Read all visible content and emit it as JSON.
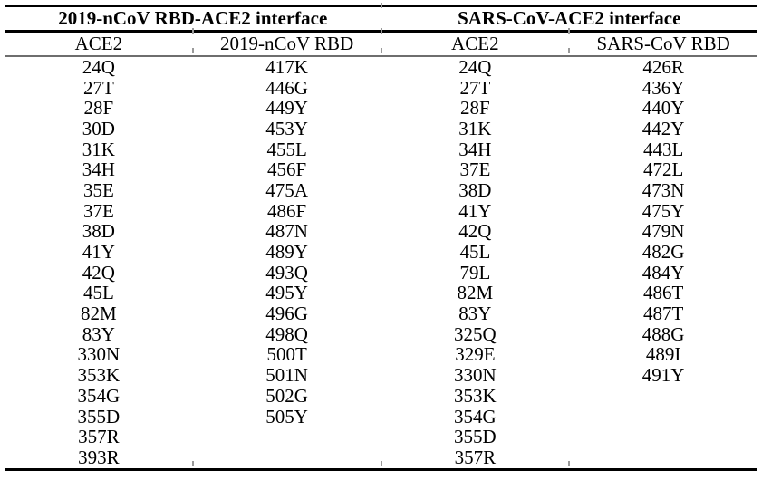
{
  "table": {
    "group_headers": [
      {
        "label": "2019-nCoV RBD-ACE2 interface"
      },
      {
        "label": "SARS-CoV-ACE2 interface"
      }
    ],
    "column_headers": [
      "ACE2",
      "2019-nCoV RBD",
      "ACE2",
      "SARS-CoV RBD"
    ],
    "columns": [
      [
        "24Q",
        "27T",
        "28F",
        "30D",
        "31K",
        "34H",
        "35E",
        "37E",
        "38D",
        "41Y",
        "42Q",
        "45L",
        "82M",
        "83Y",
        "330N",
        "353K",
        "354G",
        "355D",
        "357R",
        "393R"
      ],
      [
        "417K",
        "446G",
        "449Y",
        "453Y",
        "455L",
        "456F",
        "475A",
        "486F",
        "487N",
        "489Y",
        "493Q",
        "495Y",
        "496G",
        "498Q",
        "500T",
        "501N",
        "502G",
        "505Y"
      ],
      [
        "24Q",
        "27T",
        "28F",
        "31K",
        "34H",
        "37E",
        "38D",
        "41Y",
        "42Q",
        "45L",
        "79L",
        "82M",
        "83Y",
        "325Q",
        "329E",
        "330N",
        "353K",
        "354G",
        "355D",
        "357R"
      ],
      [
        "426R",
        "436Y",
        "440Y",
        "442Y",
        "443L",
        "472L",
        "473N",
        "475Y",
        "479N",
        "482G",
        "484Y",
        "486T",
        "487T",
        "488G",
        "489I",
        "491Y"
      ]
    ]
  },
  "colors": {
    "background": "#ffffff",
    "text": "#000000",
    "rule": "#000000",
    "sub_rule": "#6e6e6e"
  }
}
